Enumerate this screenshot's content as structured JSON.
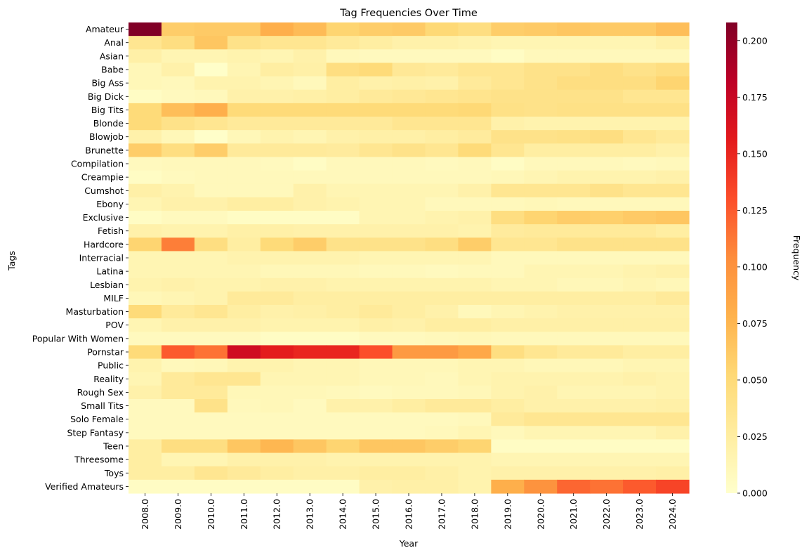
{
  "chart_data": {
    "type": "heatmap",
    "title": "Tag Frequencies Over Time",
    "xlabel": "Year",
    "ylabel": "Tags",
    "colorbar_label": "Frequency",
    "colormap": "YlOrRd",
    "vmin": 0.0,
    "vmax": 0.208,
    "colorbar_ticks": [
      "0.000",
      "0.025",
      "0.050",
      "0.075",
      "0.100",
      "0.125",
      "0.150",
      "0.175",
      "0.200"
    ],
    "colorbar_tick_values": [
      0.0,
      0.025,
      0.05,
      0.075,
      0.1,
      0.125,
      0.15,
      0.175,
      0.2
    ],
    "x": [
      "2008.0",
      "2009.0",
      "2010.0",
      "2011.0",
      "2012.0",
      "2013.0",
      "2014.0",
      "2015.0",
      "2016.0",
      "2017.0",
      "2018.0",
      "2019.0",
      "2020.0",
      "2021.0",
      "2022.0",
      "2023.0",
      "2024.0"
    ],
    "y": [
      "Amateur",
      "Anal",
      "Asian",
      "Babe",
      "Big Ass",
      "Big Dick",
      "Big Tits",
      "Blonde",
      "Blowjob",
      "Brunette",
      "Compilation",
      "Creampie",
      "Cumshot",
      "Ebony",
      "Exclusive",
      "Fetish",
      "Hardcore",
      "Interracial",
      "Latina",
      "Lesbian",
      "MILF",
      "Masturbation",
      "POV",
      "Popular With Women",
      "Pornstar",
      "Public",
      "Reality",
      "Rough Sex",
      "Small Tits",
      "Solo Female",
      "Step Fantasy",
      "Teen",
      "Threesome",
      "Toys",
      "Verified Amateurs"
    ],
    "values": [
      [
        0.208,
        0.06,
        0.062,
        0.062,
        0.08,
        0.072,
        0.055,
        0.06,
        0.062,
        0.052,
        0.045,
        0.06,
        0.062,
        0.065,
        0.062,
        0.062,
        0.07
      ],
      [
        0.035,
        0.045,
        0.065,
        0.04,
        0.035,
        0.035,
        0.03,
        0.025,
        0.02,
        0.02,
        0.018,
        0.015,
        0.015,
        0.015,
        0.015,
        0.015,
        0.02
      ],
      [
        0.022,
        0.015,
        0.015,
        0.018,
        0.015,
        0.02,
        0.01,
        0.008,
        0.008,
        0.008,
        0.008,
        0.005,
        0.01,
        0.01,
        0.01,
        0.01,
        0.01
      ],
      [
        0.012,
        0.02,
        0.002,
        0.015,
        0.025,
        0.022,
        0.045,
        0.05,
        0.032,
        0.03,
        0.035,
        0.035,
        0.04,
        0.04,
        0.045,
        0.04,
        0.045
      ],
      [
        0.012,
        0.01,
        0.018,
        0.018,
        0.015,
        0.01,
        0.025,
        0.02,
        0.022,
        0.02,
        0.03,
        0.035,
        0.04,
        0.045,
        0.045,
        0.045,
        0.055
      ],
      [
        0.005,
        0.008,
        0.01,
        0.02,
        0.02,
        0.022,
        0.025,
        0.03,
        0.032,
        0.035,
        0.038,
        0.04,
        0.04,
        0.04,
        0.04,
        0.035,
        0.035
      ],
      [
        0.05,
        0.07,
        0.08,
        0.05,
        0.05,
        0.05,
        0.05,
        0.05,
        0.05,
        0.05,
        0.052,
        0.042,
        0.04,
        0.042,
        0.042,
        0.042,
        0.042
      ],
      [
        0.05,
        0.04,
        0.035,
        0.03,
        0.03,
        0.03,
        0.03,
        0.03,
        0.035,
        0.035,
        0.035,
        0.02,
        0.018,
        0.018,
        0.018,
        0.018,
        0.018
      ],
      [
        0.02,
        0.012,
        0.002,
        0.012,
        0.018,
        0.015,
        0.02,
        0.022,
        0.022,
        0.025,
        0.028,
        0.04,
        0.04,
        0.042,
        0.045,
        0.035,
        0.03
      ],
      [
        0.06,
        0.045,
        0.06,
        0.03,
        0.03,
        0.03,
        0.028,
        0.035,
        0.04,
        0.035,
        0.05,
        0.035,
        0.025,
        0.025,
        0.025,
        0.025,
        0.02
      ],
      [
        0.008,
        0.01,
        0.01,
        0.01,
        0.008,
        0.005,
        0.01,
        0.01,
        0.01,
        0.008,
        0.01,
        0.005,
        0.01,
        0.01,
        0.01,
        0.008,
        0.01
      ],
      [
        0.005,
        0.008,
        0.01,
        0.01,
        0.01,
        0.01,
        0.01,
        0.01,
        0.01,
        0.01,
        0.01,
        0.012,
        0.015,
        0.018,
        0.018,
        0.018,
        0.02
      ],
      [
        0.022,
        0.018,
        0.01,
        0.01,
        0.01,
        0.02,
        0.015,
        0.015,
        0.015,
        0.015,
        0.02,
        0.035,
        0.035,
        0.035,
        0.04,
        0.035,
        0.035
      ],
      [
        0.015,
        0.02,
        0.02,
        0.025,
        0.025,
        0.02,
        0.018,
        0.015,
        0.015,
        0.01,
        0.01,
        0.01,
        0.012,
        0.01,
        0.01,
        0.01,
        0.01
      ],
      [
        0.005,
        0.008,
        0.008,
        0.005,
        0.005,
        0.005,
        0.005,
        0.015,
        0.015,
        0.018,
        0.02,
        0.045,
        0.055,
        0.06,
        0.058,
        0.062,
        0.065
      ],
      [
        0.02,
        0.018,
        0.018,
        0.022,
        0.022,
        0.02,
        0.02,
        0.02,
        0.02,
        0.02,
        0.018,
        0.028,
        0.03,
        0.03,
        0.03,
        0.03,
        0.025
      ],
      [
        0.055,
        0.11,
        0.045,
        0.025,
        0.05,
        0.06,
        0.04,
        0.04,
        0.04,
        0.045,
        0.06,
        0.035,
        0.035,
        0.04,
        0.04,
        0.04,
        0.04
      ],
      [
        0.015,
        0.015,
        0.015,
        0.018,
        0.018,
        0.018,
        0.018,
        0.015,
        0.015,
        0.015,
        0.015,
        0.01,
        0.01,
        0.01,
        0.01,
        0.01,
        0.01
      ],
      [
        0.015,
        0.015,
        0.015,
        0.015,
        0.012,
        0.012,
        0.012,
        0.01,
        0.01,
        0.008,
        0.01,
        0.01,
        0.015,
        0.015,
        0.015,
        0.018,
        0.02
      ],
      [
        0.018,
        0.02,
        0.018,
        0.018,
        0.02,
        0.02,
        0.018,
        0.018,
        0.018,
        0.018,
        0.018,
        0.015,
        0.015,
        0.012,
        0.012,
        0.015,
        0.012
      ],
      [
        0.012,
        0.015,
        0.018,
        0.03,
        0.03,
        0.025,
        0.025,
        0.025,
        0.025,
        0.025,
        0.025,
        0.025,
        0.025,
        0.025,
        0.025,
        0.025,
        0.03
      ],
      [
        0.05,
        0.03,
        0.035,
        0.025,
        0.02,
        0.022,
        0.025,
        0.03,
        0.025,
        0.02,
        0.01,
        0.015,
        0.018,
        0.02,
        0.02,
        0.02,
        0.02
      ],
      [
        0.015,
        0.02,
        0.02,
        0.02,
        0.018,
        0.018,
        0.018,
        0.022,
        0.02,
        0.025,
        0.025,
        0.022,
        0.022,
        0.022,
        0.022,
        0.022,
        0.022
      ],
      [
        0.008,
        0.008,
        0.008,
        0.008,
        0.005,
        0.005,
        0.005,
        0.008,
        0.008,
        0.01,
        0.012,
        0.01,
        0.01,
        0.01,
        0.01,
        0.01,
        0.01
      ],
      [
        0.05,
        0.125,
        0.115,
        0.17,
        0.155,
        0.15,
        0.15,
        0.13,
        0.095,
        0.095,
        0.085,
        0.045,
        0.035,
        0.03,
        0.03,
        0.025,
        0.025
      ],
      [
        0.018,
        0.01,
        0.012,
        0.018,
        0.018,
        0.015,
        0.015,
        0.012,
        0.012,
        0.012,
        0.015,
        0.015,
        0.012,
        0.012,
        0.012,
        0.015,
        0.015
      ],
      [
        0.015,
        0.03,
        0.035,
        0.035,
        0.015,
        0.015,
        0.015,
        0.012,
        0.012,
        0.01,
        0.015,
        0.018,
        0.018,
        0.018,
        0.018,
        0.02,
        0.018
      ],
      [
        0.02,
        0.03,
        0.03,
        0.012,
        0.012,
        0.012,
        0.01,
        0.008,
        0.01,
        0.01,
        0.012,
        0.018,
        0.02,
        0.015,
        0.015,
        0.015,
        0.018
      ],
      [
        0.008,
        0.008,
        0.04,
        0.01,
        0.012,
        0.008,
        0.02,
        0.02,
        0.025,
        0.03,
        0.03,
        0.025,
        0.02,
        0.02,
        0.02,
        0.02,
        0.022
      ],
      [
        0.008,
        0.008,
        0.008,
        0.008,
        0.008,
        0.008,
        0.008,
        0.008,
        0.008,
        0.008,
        0.01,
        0.03,
        0.035,
        0.035,
        0.035,
        0.035,
        0.035
      ],
      [
        0.008,
        0.008,
        0.008,
        0.008,
        0.008,
        0.008,
        0.008,
        0.008,
        0.008,
        0.01,
        0.015,
        0.01,
        0.015,
        0.015,
        0.015,
        0.015,
        0.02
      ],
      [
        0.025,
        0.045,
        0.045,
        0.065,
        0.075,
        0.065,
        0.055,
        0.065,
        0.065,
        0.06,
        0.055,
        0.005,
        0.005,
        0.005,
        0.005,
        0.005,
        0.005
      ],
      [
        0.025,
        0.015,
        0.015,
        0.02,
        0.02,
        0.02,
        0.018,
        0.018,
        0.018,
        0.018,
        0.018,
        0.015,
        0.015,
        0.015,
        0.015,
        0.015,
        0.015
      ],
      [
        0.025,
        0.025,
        0.035,
        0.03,
        0.025,
        0.022,
        0.022,
        0.025,
        0.025,
        0.022,
        0.018,
        0.02,
        0.02,
        0.02,
        0.02,
        0.02,
        0.022
      ],
      [
        0.005,
        0.005,
        0.005,
        0.005,
        0.005,
        0.005,
        0.005,
        0.02,
        0.022,
        0.022,
        0.018,
        0.08,
        0.1,
        0.12,
        0.115,
        0.125,
        0.135
      ]
    ]
  }
}
